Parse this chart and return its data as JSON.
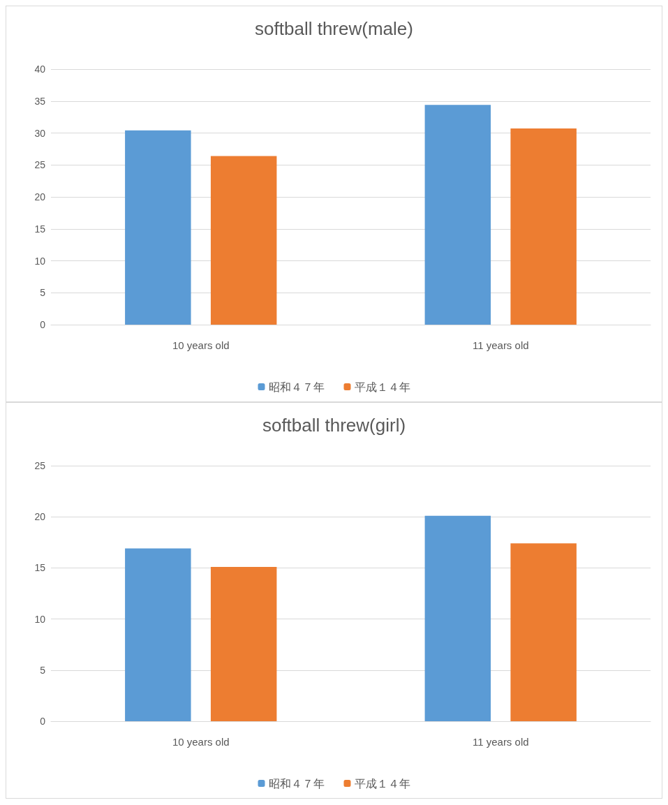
{
  "chart_data": [
    {
      "type": "bar",
      "title": "softball threw(male)",
      "categories": [
        "10 years old",
        "11 years old"
      ],
      "series": [
        {
          "name": "昭和４７年",
          "color": "#5b9bd5",
          "values": [
            30.4,
            34.4
          ]
        },
        {
          "name": "平成１４年",
          "color": "#ed7d31",
          "values": [
            26.4,
            30.7
          ]
        }
      ],
      "ylim": [
        0,
        40
      ],
      "yticks": [
        0,
        5,
        10,
        15,
        20,
        25,
        30,
        35,
        40
      ],
      "grid": "y",
      "legend": "bottom"
    },
    {
      "type": "bar",
      "title": "softball threw(girl)",
      "categories": [
        "10 years old",
        "11 years old"
      ],
      "series": [
        {
          "name": "昭和４７年",
          "color": "#5b9bd5",
          "values": [
            16.9,
            20.1
          ]
        },
        {
          "name": "平成１４年",
          "color": "#ed7d31",
          "values": [
            15.1,
            17.4
          ]
        }
      ],
      "ylim": [
        0,
        25
      ],
      "yticks": [
        0,
        5,
        10,
        15,
        20,
        25
      ],
      "grid": "y",
      "legend": "bottom"
    }
  ]
}
